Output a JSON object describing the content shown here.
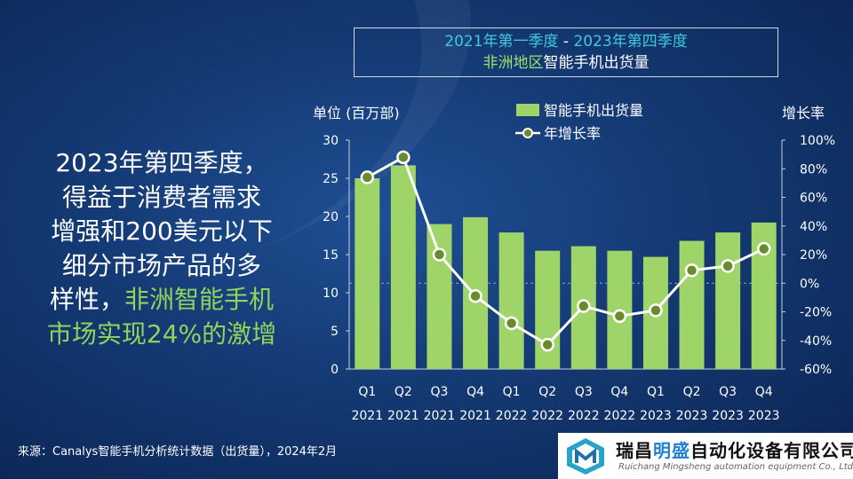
{
  "title": {
    "line1_part1": "2021年第一季度",
    "line1_sep": " - ",
    "line1_part2": "2023年第四季度",
    "line2_part1": "非洲地区",
    "line2_part2": "智能手机出货量"
  },
  "headline": {
    "lines": [
      "2023年第四季度，",
      "得益于消费者需求",
      "增强和200美元以下",
      "细分市场产品的多"
    ],
    "line5_plain": "样性，",
    "line5_highlight": "非洲智能手机",
    "line6_highlight": "市场实现24%的激增"
  },
  "source": "来源：Canalys智能手机分析统计数据（出货量），2024年2月",
  "logo": {
    "cn_part1": "瑞昌",
    "cn_part2": "明盛",
    "cn_part3": "自动化设备有限公司",
    "en": "Ruichang Mingsheng automation equipment Co., Ltd"
  },
  "colors": {
    "bar": "#9ed468",
    "line": "#ffffff",
    "marker": "#6a8a2e",
    "axis_text": "#ffffff",
    "title_cyan": "#3fc8e0",
    "highlight_green": "#8fd45c",
    "background": "#143a74"
  },
  "chart_data": {
    "type": "bar",
    "title": "",
    "categories": [
      [
        "Q1",
        "2021"
      ],
      [
        "Q2",
        "2021"
      ],
      [
        "Q3",
        "2021"
      ],
      [
        "Q4",
        "2021"
      ],
      [
        "Q1",
        "2022"
      ],
      [
        "Q2",
        "2022"
      ],
      [
        "Q3",
        "2022"
      ],
      [
        "Q4",
        "2022"
      ],
      [
        "Q1",
        "2023"
      ],
      [
        "Q2",
        "2023"
      ],
      [
        "Q3",
        "2023"
      ],
      [
        "Q4",
        "2023"
      ]
    ],
    "ylabel_left": "单位 (百万部)",
    "ylabel_right": "增长率",
    "ylim_left": [
      0,
      30
    ],
    "yticks_left": [
      "0",
      "5",
      "10",
      "15",
      "20",
      "25",
      "30"
    ],
    "ylim_right": [
      -60,
      100
    ],
    "yticks_right": [
      "-60%",
      "-40%",
      "-20%",
      "0%",
      "20%",
      "40%",
      "60%",
      "80%",
      "100%"
    ],
    "legend_position": "top",
    "series": [
      {
        "name": "智能手机出货量",
        "type": "bar",
        "axis": "left",
        "values": [
          25.0,
          26.7,
          19.0,
          19.9,
          17.9,
          15.5,
          16.1,
          15.5,
          14.7,
          16.8,
          17.9,
          19.2
        ]
      },
      {
        "name": "年增长率",
        "type": "line",
        "axis": "right",
        "values": [
          74,
          88,
          20,
          -9,
          -28,
          -43,
          -16,
          -23,
          -19,
          9,
          12,
          24
        ]
      }
    ]
  }
}
